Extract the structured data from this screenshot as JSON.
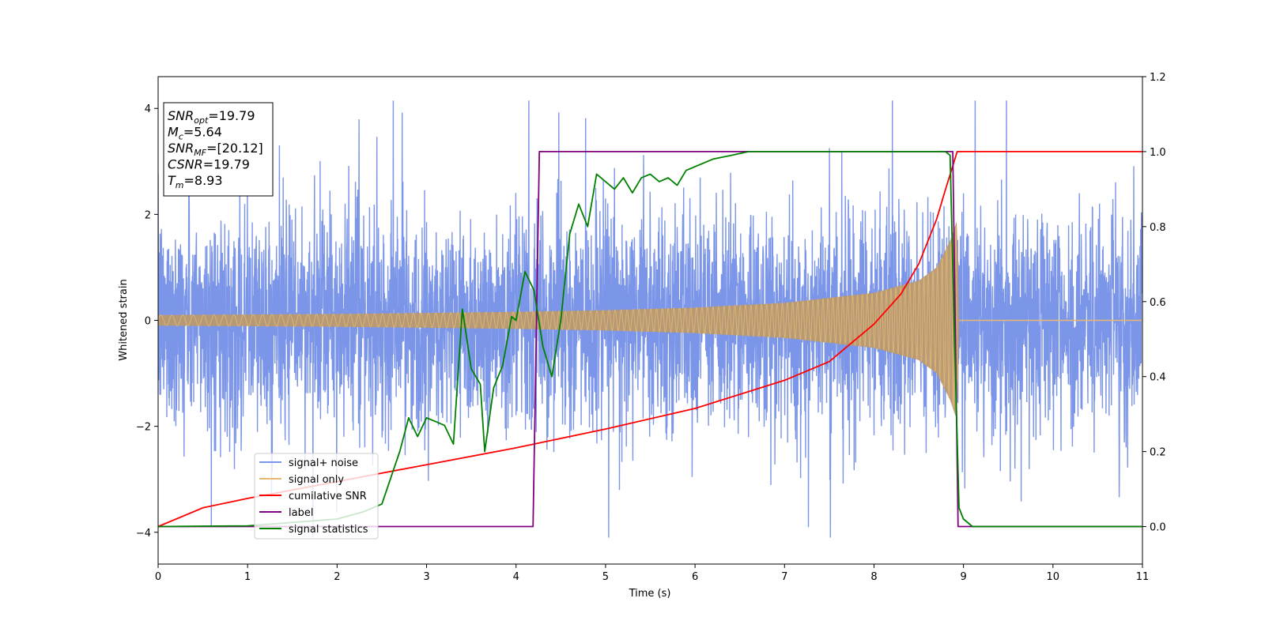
{
  "chart_data": {
    "type": "line",
    "xlabel": "Time (s)",
    "ylabel": "Whitened strain",
    "xlim": [
      0,
      11
    ],
    "ylim": [
      -4.6,
      4.6
    ],
    "y2lim": [
      -0.1,
      1.2
    ],
    "x_ticks": [
      "0",
      "1",
      "2",
      "3",
      "4",
      "5",
      "6",
      "7",
      "8",
      "9",
      "10",
      "11"
    ],
    "y_ticks": [
      "−4",
      "−2",
      "0",
      "2",
      "4"
    ],
    "y2_ticks": [
      "0.0",
      "0.2",
      "0.4",
      "0.6",
      "0.8",
      "1.0",
      "1.2"
    ],
    "grid": false,
    "legend_placement": "lower-left",
    "info_box": {
      "placement": "top-left",
      "lines": [
        {
          "name": "SNR",
          "sub": "opt",
          "value": "=19.79"
        },
        {
          "name": "M",
          "sub": "c",
          "value": "=5.64"
        },
        {
          "name": "SNR",
          "sub": "MF",
          "value": "=[20.12]"
        },
        {
          "name": "CSNR",
          "sub": "",
          "value": "=19.79"
        },
        {
          "name": "T",
          "sub": "m",
          "value": "=8.93"
        }
      ]
    },
    "series": [
      {
        "name": "signal+ noise",
        "axis": "left",
        "color": "#7b95e8",
        "kind": "noise",
        "noise_std": 1.0,
        "spike_range": [
          -4.1,
          4.15
        ],
        "x_range": [
          0,
          11
        ]
      },
      {
        "name": "signal only",
        "axis": "left",
        "color": "#e8b870",
        "kind": "chirp",
        "envelope": {
          "x": [
            0,
            2,
            4,
            5,
            6,
            7,
            8,
            8.5,
            8.7,
            8.85,
            8.93,
            8.95,
            11
          ],
          "y": [
            0.1,
            0.12,
            0.16,
            0.19,
            0.24,
            0.33,
            0.52,
            0.75,
            1.0,
            1.5,
            1.9,
            0,
            0
          ]
        }
      },
      {
        "name": "cumilative SNR",
        "axis": "right",
        "color": "#ff0000",
        "kind": "line",
        "x": [
          0,
          0.5,
          1,
          2,
          3,
          4,
          5,
          6,
          7,
          7.5,
          8,
          8.3,
          8.5,
          8.7,
          8.8,
          8.93,
          9,
          11
        ],
        "y": [
          0.0,
          0.05,
          0.075,
          0.12,
          0.165,
          0.21,
          0.26,
          0.315,
          0.39,
          0.44,
          0.54,
          0.62,
          0.7,
          0.82,
          0.9,
          1.0,
          1.0,
          1.0
        ]
      },
      {
        "name": "label",
        "axis": "right",
        "color": "#800080",
        "kind": "line",
        "x": [
          0,
          4.19,
          4.26,
          8.88,
          8.94,
          11
        ],
        "y": [
          0,
          0,
          1,
          1,
          0,
          0
        ]
      },
      {
        "name": "signal statistics",
        "axis": "right",
        "color": "#008000",
        "kind": "line",
        "x": [
          0,
          1,
          2,
          2.3,
          2.5,
          2.7,
          2.8,
          2.9,
          3,
          3.1,
          3.2,
          3.3,
          3.4,
          3.5,
          3.6,
          3.65,
          3.75,
          3.85,
          3.95,
          4.0,
          4.1,
          4.2,
          4.3,
          4.4,
          4.5,
          4.6,
          4.7,
          4.8,
          4.9,
          5.0,
          5.1,
          5.2,
          5.3,
          5.4,
          5.5,
          5.6,
          5.7,
          5.8,
          5.9,
          6.0,
          6.1,
          6.2,
          6.4,
          6.6,
          7,
          8,
          8.8,
          8.85,
          8.9,
          8.95,
          9.0,
          9.1,
          11
        ],
        "y": [
          0.0,
          0.002,
          0.02,
          0.04,
          0.06,
          0.2,
          0.29,
          0.24,
          0.29,
          0.28,
          0.27,
          0.22,
          0.58,
          0.42,
          0.38,
          0.2,
          0.37,
          0.43,
          0.56,
          0.55,
          0.68,
          0.63,
          0.48,
          0.4,
          0.55,
          0.78,
          0.86,
          0.8,
          0.94,
          0.92,
          0.9,
          0.93,
          0.89,
          0.93,
          0.94,
          0.92,
          0.93,
          0.91,
          0.95,
          0.96,
          0.97,
          0.98,
          0.99,
          1.0,
          1.0,
          1.0,
          1.0,
          0.99,
          0.5,
          0.05,
          0.02,
          0.0,
          0.0
        ]
      }
    ]
  }
}
